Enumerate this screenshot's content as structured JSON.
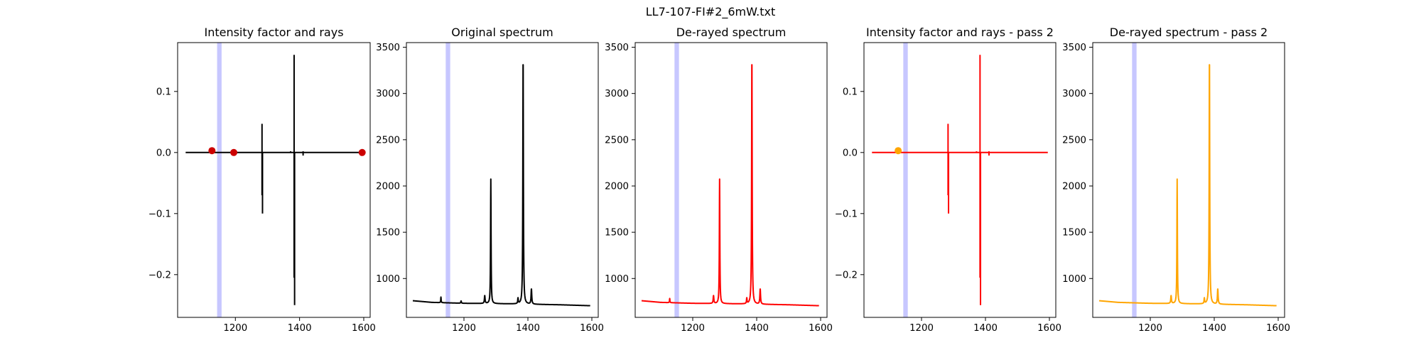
{
  "figure_title": "LL7-107-FI#2_6mW.txt",
  "colors": {
    "black": "#000000",
    "red": "#ff0000",
    "orange": "#ffa500",
    "band": "#0000ff",
    "marker_red": "#cc0000"
  },
  "chart_data": [
    {
      "type": "line",
      "title": "Intensity factor and rays",
      "xlim": [
        1020,
        1620
      ],
      "ylim": [
        -0.27,
        0.18
      ],
      "xticks": [
        1200,
        1400,
        1600
      ],
      "yticks": [
        -0.2,
        -0.1,
        0.0,
        0.1
      ],
      "ytick_labels": [
        "−0.2",
        "−0.1",
        "0.0",
        "0.1"
      ],
      "shaded_band": [
        1143,
        1157
      ],
      "color": "#000000",
      "spikes": [
        {
          "x": 1283,
          "low": -0.07,
          "high": 0.047
        },
        {
          "x": 1284.5,
          "low": -0.1,
          "high": 0.0
        },
        {
          "x": 1383,
          "low": -0.205,
          "high": 0.16
        },
        {
          "x": 1384.5,
          "low": -0.25,
          "high": 0.0
        },
        {
          "x": 1372,
          "low": 0.0,
          "high": 0.002
        },
        {
          "x": 1411,
          "low": -0.005,
          "high": 0.002
        }
      ],
      "markers": [
        {
          "x": 1127,
          "y": 0.003,
          "color": "#cc0000"
        },
        {
          "x": 1195,
          "y": 0.0,
          "color": "#cc0000"
        },
        {
          "x": 1595,
          "y": 0.0,
          "color": "#cc0000"
        }
      ],
      "baseline_x": [
        1045,
        1595
      ]
    },
    {
      "type": "line",
      "title": "Original spectrum",
      "xlim": [
        1020,
        1620
      ],
      "ylim": [
        580,
        3550
      ],
      "xticks": [
        1200,
        1400,
        1600
      ],
      "yticks": [
        1000,
        1500,
        2000,
        2500,
        3000,
        3500
      ],
      "ytick_labels": [
        "1000",
        "1500",
        "2000",
        "2500",
        "3000",
        "3500"
      ],
      "shaded_band": [
        1143,
        1157
      ],
      "color": "#000000",
      "baseline": {
        "x": [
          1040,
          1100,
          1200,
          1300,
          1400,
          1500,
          1595
        ],
        "y": [
          760,
          742,
          732,
          728,
          722,
          716,
          706
        ]
      },
      "peaks": [
        {
          "center": 1128,
          "height": 60,
          "width": 1.5
        },
        {
          "center": 1191,
          "height": 25,
          "width": 2
        },
        {
          "center": 1265,
          "height": 85,
          "width": 2.5
        },
        {
          "center": 1284,
          "height": 1345,
          "width": 1.8
        },
        {
          "center": 1369,
          "height": 60,
          "width": 2
        },
        {
          "center": 1385,
          "height": 2690,
          "width": 2
        },
        {
          "center": 1411,
          "height": 165,
          "width": 2.5
        }
      ]
    },
    {
      "type": "line",
      "title": "De-rayed spectrum",
      "xlim": [
        1020,
        1620
      ],
      "ylim": [
        580,
        3550
      ],
      "xticks": [
        1200,
        1400,
        1600
      ],
      "yticks": [
        1000,
        1500,
        2000,
        2500,
        3000,
        3500
      ],
      "ytick_labels": [
        "1000",
        "1500",
        "2000",
        "2500",
        "3000",
        "3500"
      ],
      "shaded_band": [
        1143,
        1157
      ],
      "color": "#ff0000",
      "baseline": {
        "x": [
          1040,
          1100,
          1200,
          1300,
          1400,
          1500,
          1595
        ],
        "y": [
          760,
          742,
          732,
          728,
          722,
          716,
          706
        ]
      },
      "peaks": [
        {
          "center": 1128,
          "height": 45,
          "width": 1.5
        },
        {
          "center": 1265,
          "height": 85,
          "width": 2.5
        },
        {
          "center": 1284,
          "height": 1345,
          "width": 1.8
        },
        {
          "center": 1369,
          "height": 60,
          "width": 2
        },
        {
          "center": 1385,
          "height": 2690,
          "width": 2
        },
        {
          "center": 1411,
          "height": 165,
          "width": 2.5
        }
      ]
    },
    {
      "type": "line",
      "title": "Intensity factor and rays - pass 2",
      "xlim": [
        1020,
        1620
      ],
      "ylim": [
        -0.27,
        0.18
      ],
      "xticks": [
        1200,
        1400,
        1600
      ],
      "yticks": [
        -0.2,
        -0.1,
        0.0,
        0.1
      ],
      "ytick_labels": [
        "−0.2",
        "−0.1",
        "0.0",
        "0.1"
      ],
      "shaded_band": [
        1143,
        1157
      ],
      "color": "#ff0000",
      "spikes": [
        {
          "x": 1283,
          "low": -0.07,
          "high": 0.047
        },
        {
          "x": 1284.5,
          "low": -0.1,
          "high": 0.0
        },
        {
          "x": 1383,
          "low": -0.205,
          "high": 0.16
        },
        {
          "x": 1384.5,
          "low": -0.25,
          "high": 0.0
        },
        {
          "x": 1372,
          "low": 0.0,
          "high": 0.002
        },
        {
          "x": 1411,
          "low": -0.005,
          "high": 0.002
        }
      ],
      "markers": [
        {
          "x": 1127,
          "y": 0.003,
          "color": "#ffa500"
        }
      ],
      "baseline_x": [
        1045,
        1595
      ]
    },
    {
      "type": "line",
      "title": "De-rayed spectrum - pass 2",
      "xlim": [
        1020,
        1620
      ],
      "ylim": [
        580,
        3550
      ],
      "xticks": [
        1200,
        1400,
        1600
      ],
      "yticks": [
        1000,
        1500,
        2000,
        2500,
        3000,
        3500
      ],
      "ytick_labels": [
        "1000",
        "1500",
        "2000",
        "2500",
        "3000",
        "3500"
      ],
      "shaded_band": [
        1143,
        1157
      ],
      "color": "#ffa500",
      "baseline": {
        "x": [
          1040,
          1100,
          1200,
          1300,
          1400,
          1500,
          1595
        ],
        "y": [
          760,
          742,
          732,
          728,
          722,
          716,
          706
        ]
      },
      "peaks": [
        {
          "center": 1265,
          "height": 85,
          "width": 2.5
        },
        {
          "center": 1284,
          "height": 1345,
          "width": 1.8
        },
        {
          "center": 1369,
          "height": 60,
          "width": 2
        },
        {
          "center": 1385,
          "height": 2690,
          "width": 2
        },
        {
          "center": 1411,
          "height": 165,
          "width": 2.5
        }
      ]
    }
  ]
}
